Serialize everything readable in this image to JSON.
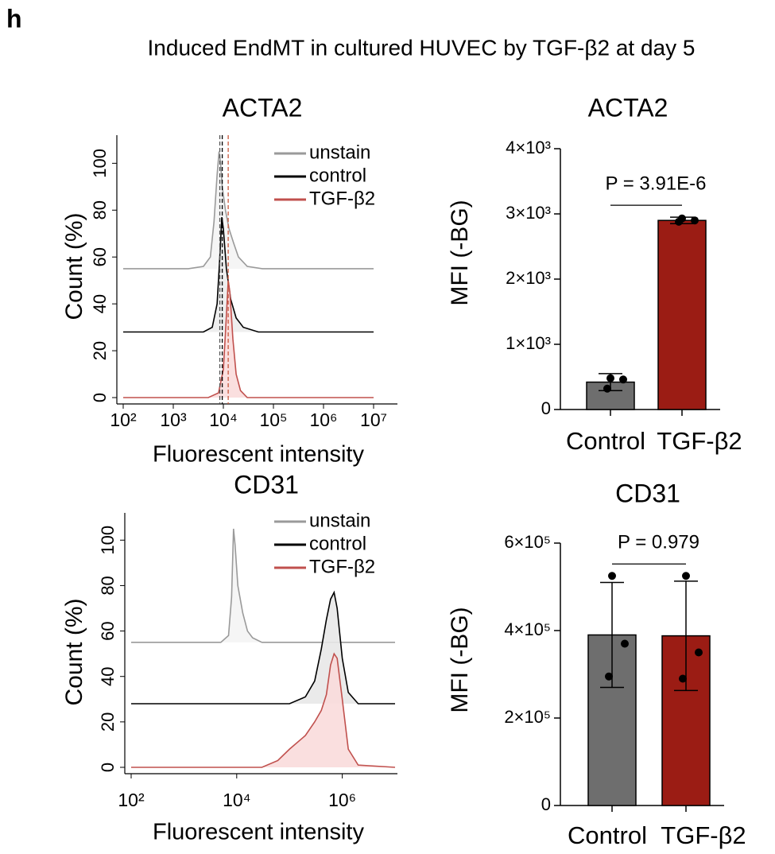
{
  "panel_label": "h",
  "title": "Induced EndMT in cultured HUVEC by TGF-β2 at day 5",
  "chart_data": [
    {
      "type": "density",
      "title": "ACTA2",
      "xlabel": "Fluorescent intensity",
      "ylabel": "Count (%)",
      "xscale": "log",
      "xlim": [
        100,
        10000000
      ],
      "xticks": [
        {
          "value": 100,
          "label": "10²"
        },
        {
          "value": 1000,
          "label": "10³"
        },
        {
          "value": 10000,
          "label": "10⁴"
        },
        {
          "value": 100000,
          "label": "10⁵"
        },
        {
          "value": 1000000,
          "label": "10⁶"
        },
        {
          "value": 10000000,
          "label": "10⁷"
        }
      ],
      "ylim": [
        0,
        112
      ],
      "yticks": [
        0,
        20,
        40,
        60,
        80,
        100
      ],
      "legend": "upper right",
      "vlines": [
        {
          "x": 8500,
          "color": "#555555"
        },
        {
          "x": 9500,
          "color": "#000000"
        },
        {
          "x": 12500,
          "color": "#c8573d"
        }
      ],
      "series": [
        {
          "name": "unstain",
          "color": "#9a9a9a",
          "fill": "#f4f4f4",
          "x": [
            100,
            2000,
            4000,
            5500,
            6500,
            7500,
            8200,
            8800,
            9500,
            11000,
            13000,
            16000,
            20000,
            30000,
            60000,
            10000000
          ],
          "values": [
            55,
            55,
            56,
            60,
            75,
            95,
            105,
            100,
            90,
            80,
            72,
            66,
            60,
            56,
            55,
            55
          ]
        },
        {
          "name": "control",
          "color": "#000000",
          "fill": "#ececec",
          "x": [
            100,
            4000,
            6000,
            7500,
            8500,
            9300,
            10000,
            11500,
            14000,
            18000,
            25000,
            50000,
            10000000
          ],
          "values": [
            28,
            28,
            30,
            40,
            60,
            77,
            72,
            55,
            42,
            34,
            30,
            28,
            28
          ]
        },
        {
          "name": "TGF-β2",
          "color": "#c0504d",
          "fill": "#f9dcdc",
          "x": [
            100,
            5000,
            8000,
            10000,
            11500,
            12500,
            13500,
            15500,
            18000,
            22000,
            30000,
            10000000
          ],
          "values": [
            0,
            0,
            2,
            12,
            35,
            50,
            45,
            25,
            10,
            3,
            0,
            0
          ]
        }
      ]
    },
    {
      "type": "bar",
      "title": "ACTA2",
      "ylabel": "MFI (-BG)",
      "categories": [
        "Control",
        "TGF-β2"
      ],
      "values": [
        420,
        2900
      ],
      "errors": [
        130,
        50
      ],
      "colors": [
        "#6e6e6e",
        "#9b1c14"
      ],
      "points": [
        [
          480,
          460,
          320
        ],
        [
          2930,
          2900,
          2880
        ]
      ],
      "ylim": [
        0,
        4000
      ],
      "yticks": [
        0,
        {
          "value": 1000,
          "label": "1×10³"
        },
        {
          "value": 2000,
          "label": "2×10³"
        },
        {
          "value": 3000,
          "label": "3×10³"
        },
        {
          "value": 4000,
          "label": "4×10³"
        }
      ],
      "annotation": "P = 3.91E-6"
    },
    {
      "type": "density",
      "title": "CD31",
      "xlabel": "Fluorescent intensity",
      "ylabel": "Count (%)",
      "xscale": "log",
      "xlim": [
        100,
        10000000
      ],
      "xticks": [
        {
          "value": 100,
          "label": "10²"
        },
        {
          "value": 10000,
          "label": "10⁴"
        },
        {
          "value": 1000000,
          "label": "10⁶"
        }
      ],
      "ylim": [
        0,
        112
      ],
      "yticks": [
        0,
        20,
        40,
        60,
        80,
        100
      ],
      "legend": "upper right",
      "series": [
        {
          "name": "unstain",
          "color": "#9a9a9a",
          "fill": "#f4f4f4",
          "x": [
            100,
            5000,
            7000,
            8000,
            8700,
            9300,
            10500,
            13000,
            16000,
            20000,
            30000,
            10000000
          ],
          "values": [
            55,
            55,
            58,
            75,
            105,
            98,
            80,
            68,
            60,
            57,
            55,
            55
          ]
        },
        {
          "name": "control",
          "color": "#000000",
          "fill": "#e8e8e8",
          "x": [
            100,
            100000,
            200000,
            300000,
            400000,
            500000,
            600000,
            700000,
            800000,
            1000000,
            1300000,
            2000000,
            10000000
          ],
          "values": [
            28,
            28,
            31,
            38,
            52,
            65,
            74,
            77,
            70,
            48,
            33,
            28,
            28
          ]
        },
        {
          "name": "TGF-β2",
          "color": "#c0504d",
          "fill": "#f9dcdc",
          "x": [
            100,
            30000,
            60000,
            100000,
            200000,
            300000,
            400000,
            500000,
            600000,
            700000,
            800000,
            1000000,
            1300000,
            2000000,
            10000000
          ],
          "values": [
            0,
            0,
            3,
            8,
            14,
            20,
            25,
            32,
            45,
            50,
            48,
            30,
            8,
            1,
            0
          ]
        }
      ]
    },
    {
      "type": "bar",
      "title": "CD31",
      "ylabel": "MFI (-BG)",
      "categories": [
        "Control",
        "TGF-β2"
      ],
      "values": [
        390000,
        388000
      ],
      "errors": [
        120000,
        125000
      ],
      "colors": [
        "#6e6e6e",
        "#9b1c14"
      ],
      "points": [
        [
          525000,
          370000,
          295000
        ],
        [
          525000,
          350000,
          290000
        ]
      ],
      "ylim": [
        0,
        600000
      ],
      "yticks": [
        0,
        {
          "value": 200000,
          "label": "2×10⁵"
        },
        {
          "value": 400000,
          "label": "4×10⁵"
        },
        {
          "value": 600000,
          "label": "6×10⁵"
        }
      ],
      "annotation": "P = 0.979"
    }
  ]
}
